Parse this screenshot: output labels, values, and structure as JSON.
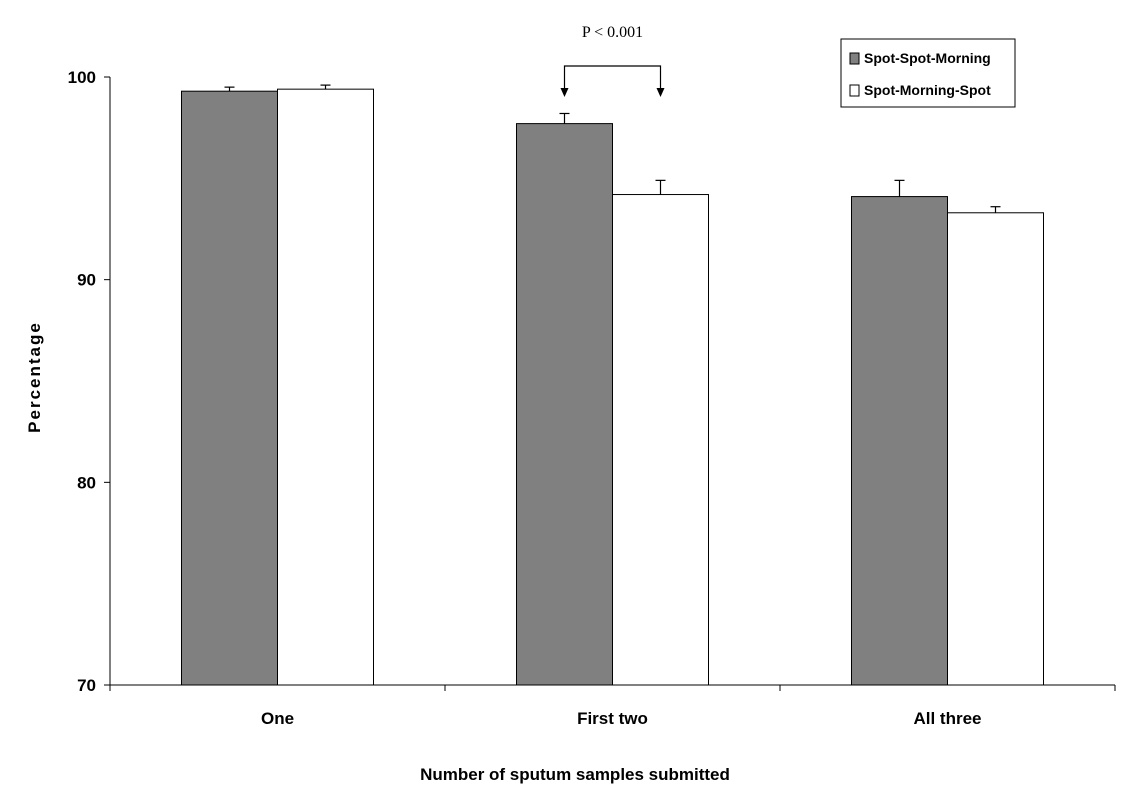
{
  "chart_data": {
    "type": "bar",
    "title": "",
    "xlabel": "Number of sputum samples submitted",
    "ylabel": "Percentage",
    "ylim": [
      70,
      100
    ],
    "yticks": [
      70,
      80,
      90,
      100
    ],
    "grid": false,
    "legend_position": "top-right",
    "categories": [
      "One",
      "First two",
      "All three"
    ],
    "series": [
      {
        "name": "Spot-Spot-Morning",
        "color": "#808080",
        "values": [
          99.3,
          97.7,
          94.1
        ],
        "errors": [
          0.2,
          0.5,
          0.8
        ]
      },
      {
        "name": "Spot-Morning-Spot",
        "color": "#ffffff",
        "values": [
          99.4,
          94.2,
          93.3
        ],
        "errors": [
          0.2,
          0.7,
          0.3
        ]
      }
    ],
    "annotations": [
      {
        "text": "P < 0.001",
        "category": "First two"
      }
    ]
  }
}
